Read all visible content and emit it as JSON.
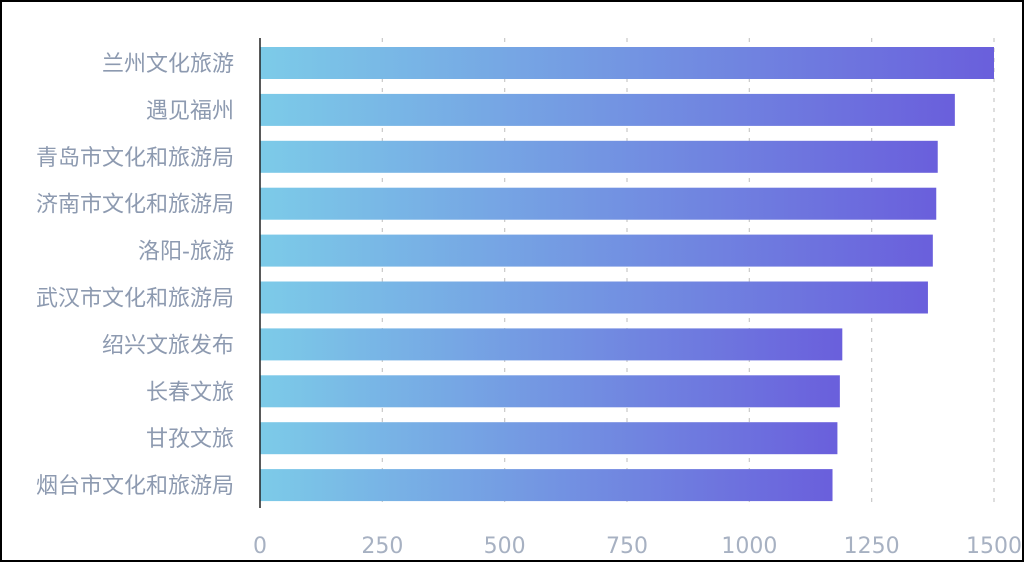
{
  "colors": {
    "bar_gradient_start": "#7ccbe8",
    "bar_gradient_end": "#6a5fdc",
    "label_text": "#8d9ab0",
    "tick_text": "#a7b1c2",
    "gridline": "#c9c9c9"
  },
  "chart_data": {
    "type": "bar",
    "orientation": "horizontal",
    "categories": [
      "兰州文化旅游",
      "遇见福州",
      "青岛市文化和旅游局",
      "济南市文化和旅游局",
      "洛阳-旅游",
      "武汉市文化和旅游局",
      "绍兴文旅发布",
      "长春文旅",
      "甘孜文旅",
      "烟台市文化和旅游局"
    ],
    "values": [
      1500,
      1420,
      1385,
      1382,
      1375,
      1365,
      1190,
      1185,
      1180,
      1170
    ],
    "xlim": [
      0,
      1500
    ],
    "xticks": [
      "0",
      "250",
      "500",
      "750",
      "1000",
      "1250",
      "1500"
    ],
    "grid": "vertical dashed",
    "title": "",
    "xlabel": "",
    "ylabel": ""
  }
}
